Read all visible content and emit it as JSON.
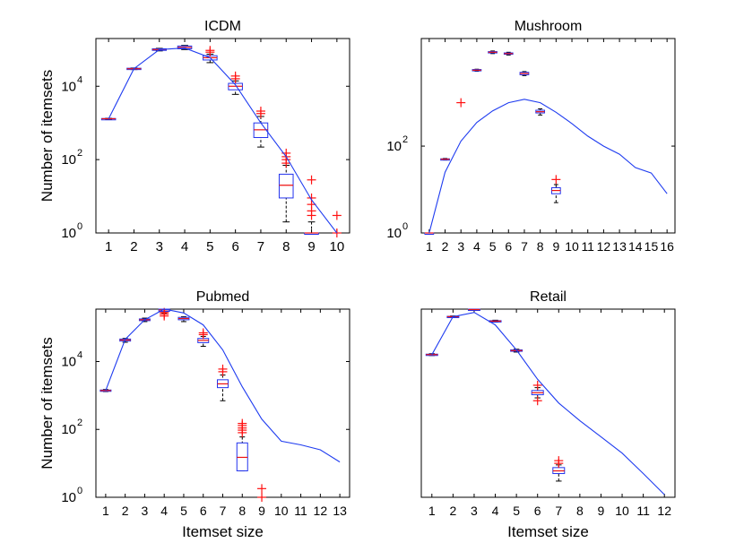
{
  "chart_data": [
    {
      "type": "box",
      "title": "ICDM",
      "xlabel": "",
      "ylabel": "Number of itemsets",
      "yscale": "log",
      "ylim": [
        1,
        200000
      ],
      "yticks": [
        {
          "v": 1,
          "exp": "0"
        },
        {
          "v": 100,
          "exp": "2"
        },
        {
          "v": 10000,
          "exp": "4"
        }
      ],
      "xlim": [
        0.5,
        10.5
      ],
      "categories": [
        "1",
        "2",
        "3",
        "4",
        "5",
        "6",
        "7",
        "8",
        "9",
        "10"
      ],
      "line": [
        {
          "x": 1,
          "y": 1300
        },
        {
          "x": 2,
          "y": 30000
        },
        {
          "x": 3,
          "y": 100000
        },
        {
          "x": 4,
          "y": 110000
        },
        {
          "x": 5,
          "y": 60000
        },
        {
          "x": 6,
          "y": 11000
        },
        {
          "x": 7,
          "y": 1000
        },
        {
          "x": 8,
          "y": 120
        },
        {
          "x": 9,
          "y": 8
        },
        {
          "x": 10,
          "y": 1
        }
      ],
      "boxes": [
        {
          "x": 1,
          "q1": 1280,
          "median": 1300,
          "q3": 1320,
          "whislo": 1260,
          "whishi": 1340,
          "outliers": []
        },
        {
          "x": 2,
          "q1": 29000,
          "median": 30000,
          "q3": 31000,
          "whislo": 28500,
          "whishi": 31500,
          "outliers": []
        },
        {
          "x": 3,
          "q1": 95000,
          "median": 100000,
          "q3": 105000,
          "whislo": 92000,
          "whishi": 108000,
          "outliers": []
        },
        {
          "x": 4,
          "q1": 105000,
          "median": 115000,
          "q3": 125000,
          "whislo": 100000,
          "whishi": 130000,
          "outliers": []
        },
        {
          "x": 5,
          "q1": 52000,
          "median": 60000,
          "q3": 68000,
          "whislo": 44000,
          "whishi": 75000,
          "outliers": [
            85000,
            95000
          ]
        },
        {
          "x": 6,
          "q1": 8000,
          "median": 10000,
          "q3": 12000,
          "whislo": 6000,
          "whishi": 14000,
          "outliers": [
            16000,
            19000
          ]
        },
        {
          "x": 7,
          "q1": 400,
          "median": 650,
          "q3": 1000,
          "whislo": 220,
          "whishi": 1500,
          "outliers": [
            1800,
            2100
          ]
        },
        {
          "x": 8,
          "q1": 9,
          "median": 20,
          "q3": 40,
          "whislo": 2,
          "whishi": 70,
          "outliers": [
            80,
            100,
            120,
            150
          ]
        },
        {
          "x": 9,
          "q1": 1,
          "median": 1,
          "q3": 1,
          "whislo": 1,
          "whishi": 2,
          "outliers": [
            3,
            4,
            6,
            9,
            28
          ]
        },
        {
          "x": 10,
          "q1": null,
          "median": null,
          "q3": null,
          "whislo": null,
          "whishi": null,
          "outliers": [
            1,
            3
          ]
        }
      ]
    },
    {
      "type": "box",
      "title": "Mushroom",
      "xlabel": "",
      "ylabel": "",
      "yscale": "log",
      "ylim": [
        1,
        30000
      ],
      "yticks": [
        {
          "v": 1,
          "exp": "0"
        },
        {
          "v": 100,
          "exp": "2"
        }
      ],
      "xlim": [
        0.5,
        16.5
      ],
      "categories": [
        "1",
        "2",
        "3",
        "4",
        "5",
        "6",
        "7",
        "8",
        "9",
        "10",
        "11",
        "12",
        "13",
        "14",
        "15",
        "16"
      ],
      "line": [
        {
          "x": 1,
          "y": 1
        },
        {
          "x": 2,
          "y": 25
        },
        {
          "x": 3,
          "y": 130
        },
        {
          "x": 4,
          "y": 350
        },
        {
          "x": 5,
          "y": 650
        },
        {
          "x": 6,
          "y": 1000
        },
        {
          "x": 7,
          "y": 1200
        },
        {
          "x": 8,
          "y": 1000
        },
        {
          "x": 9,
          "y": 600
        },
        {
          "x": 10,
          "y": 330
        },
        {
          "x": 11,
          "y": 170
        },
        {
          "x": 12,
          "y": 100
        },
        {
          "x": 13,
          "y": 65
        },
        {
          "x": 14,
          "y": 32
        },
        {
          "x": 15,
          "y": 24
        },
        {
          "x": 16,
          "y": 8
        }
      ],
      "boxes": [
        {
          "x": 1,
          "q1": 1,
          "median": 1,
          "q3": 1,
          "whislo": 1,
          "whishi": 1,
          "outliers": []
        },
        {
          "x": 2,
          "q1": 49,
          "median": 50,
          "q3": 51,
          "whislo": 48,
          "whishi": 52,
          "outliers": []
        },
        {
          "x": 3,
          "q1": null,
          "median": null,
          "q3": null,
          "whislo": null,
          "whishi": null,
          "outliers": [
            1000
          ]
        },
        {
          "x": 4,
          "q1": 5400,
          "median": 5600,
          "q3": 5800,
          "whislo": 5300,
          "whishi": 5900,
          "outliers": []
        },
        {
          "x": 5,
          "q1": 14000,
          "median": 14500,
          "q3": 15000,
          "whislo": 13500,
          "whishi": 15500,
          "outliers": []
        },
        {
          "x": 6,
          "q1": 13000,
          "median": 13500,
          "q3": 14000,
          "whislo": 12500,
          "whishi": 14500,
          "outliers": []
        },
        {
          "x": 7,
          "q1": 4400,
          "median": 4700,
          "q3": 5000,
          "whislo": 4200,
          "whishi": 5200,
          "outliers": []
        },
        {
          "x": 8,
          "q1": 580,
          "median": 620,
          "q3": 670,
          "whislo": 520,
          "whishi": 720,
          "outliers": []
        },
        {
          "x": 9,
          "q1": 8,
          "median": 9.5,
          "q3": 11,
          "whislo": 5,
          "whishi": 13,
          "outliers": [
            17
          ]
        }
      ]
    },
    {
      "type": "box",
      "title": "Pubmed",
      "xlabel": "Itemset size",
      "ylabel": "Number of itemsets",
      "yscale": "log",
      "ylim": [
        1,
        350000
      ],
      "yticks": [
        {
          "v": 1,
          "exp": "0"
        },
        {
          "v": 100,
          "exp": "2"
        },
        {
          "v": 10000,
          "exp": "4"
        }
      ],
      "xlim": [
        0.5,
        13.5
      ],
      "categories": [
        "1",
        "2",
        "3",
        "4",
        "5",
        "6",
        "7",
        "8",
        "9",
        "10",
        "11",
        "12",
        "13"
      ],
      "line": [
        {
          "x": 1,
          "y": 1400
        },
        {
          "x": 2,
          "y": 45000
        },
        {
          "x": 3,
          "y": 170000
        },
        {
          "x": 4,
          "y": 350000
        },
        {
          "x": 5,
          "y": 270000
        },
        {
          "x": 6,
          "y": 120000
        },
        {
          "x": 7,
          "y": 22000
        },
        {
          "x": 8,
          "y": 1800
        },
        {
          "x": 9,
          "y": 200
        },
        {
          "x": 10,
          "y": 45
        },
        {
          "x": 11,
          "y": 35
        },
        {
          "x": 12,
          "y": 25
        },
        {
          "x": 13,
          "y": 11
        }
      ],
      "boxes": [
        {
          "x": 1,
          "q1": 1350,
          "median": 1400,
          "q3": 1450,
          "whislo": 1300,
          "whishi": 1500,
          "outliers": []
        },
        {
          "x": 2,
          "q1": 40000,
          "median": 43000,
          "q3": 46000,
          "whislo": 37000,
          "whishi": 48000,
          "outliers": []
        },
        {
          "x": 3,
          "q1": 160000,
          "median": 170000,
          "q3": 180000,
          "whislo": 150000,
          "whishi": 190000,
          "outliers": []
        },
        {
          "x": 4,
          "q1": 300000,
          "median": 330000,
          "q3": 350000,
          "whislo": 260000,
          "whishi": 350000,
          "outliers": [
            220000,
            250000,
            280000
          ]
        },
        {
          "x": 5,
          "q1": 170000,
          "median": 185000,
          "q3": 200000,
          "whislo": 150000,
          "whishi": 210000,
          "outliers": []
        },
        {
          "x": 6,
          "q1": 36000,
          "median": 42000,
          "q3": 48000,
          "whislo": 28000,
          "whishi": 55000,
          "outliers": [
            62000,
            70000
          ]
        },
        {
          "x": 7,
          "q1": 1700,
          "median": 2200,
          "q3": 2900,
          "whislo": 700,
          "whishi": 4000,
          "outliers": [
            5000,
            6000
          ]
        },
        {
          "x": 8,
          "q1": 6,
          "median": 15,
          "q3": 40,
          "whislo": 6,
          "whishi": 60,
          "outliers": [
            80,
            95,
            110,
            130,
            150
          ]
        },
        {
          "x": 9,
          "q1": null,
          "median": null,
          "q3": null,
          "whislo": null,
          "whishi": null,
          "outliers": [
            1,
            1.8
          ]
        }
      ]
    },
    {
      "type": "box",
      "title": "Retail",
      "xlabel": "Itemset size",
      "ylabel": "",
      "yscale": "log",
      "ylim": [
        1,
        350000
      ],
      "yticks": [],
      "xlim": [
        0.5,
        12.5
      ],
      "categories": [
        "1",
        "2",
        "3",
        "4",
        "5",
        "6",
        "7",
        "8",
        "9",
        "10",
        "11",
        "12"
      ],
      "line": [
        {
          "x": 1,
          "y": 16000
        },
        {
          "x": 2,
          "y": 210000
        },
        {
          "x": 3,
          "y": 280000
        },
        {
          "x": 4,
          "y": 120000
        },
        {
          "x": 5,
          "y": 22000
        },
        {
          "x": 6,
          "y": 3000
        },
        {
          "x": 7,
          "y": 600
        },
        {
          "x": 8,
          "y": 180
        },
        {
          "x": 9,
          "y": 60
        },
        {
          "x": 10,
          "y": 20
        },
        {
          "x": 11,
          "y": 5
        },
        {
          "x": 12,
          "y": 1.2
        }
      ],
      "boxes": [
        {
          "x": 1,
          "q1": 15500,
          "median": 16000,
          "q3": 16500,
          "whislo": 15000,
          "whishi": 17000,
          "outliers": []
        },
        {
          "x": 2,
          "q1": 205000,
          "median": 210000,
          "q3": 215000,
          "whislo": 200000,
          "whishi": 220000,
          "outliers": []
        },
        {
          "x": 3,
          "q1": 330000,
          "median": 340000,
          "q3": 350000,
          "whislo": 320000,
          "whishi": 350000,
          "outliers": []
        },
        {
          "x": 4,
          "q1": 150000,
          "median": 155000,
          "q3": 160000,
          "whislo": 145000,
          "whishi": 165000,
          "outliers": []
        },
        {
          "x": 5,
          "q1": 20000,
          "median": 21000,
          "q3": 22000,
          "whislo": 19000,
          "whishi": 23000,
          "outliers": []
        },
        {
          "x": 6,
          "q1": 1050,
          "median": 1200,
          "q3": 1400,
          "whislo": 850,
          "whishi": 1700,
          "outliers": [
            700,
            2000
          ]
        },
        {
          "x": 7,
          "q1": 5,
          "median": 6,
          "q3": 7.5,
          "whislo": 3,
          "whishi": 9,
          "outliers": [
            10,
            12
          ]
        }
      ]
    }
  ]
}
